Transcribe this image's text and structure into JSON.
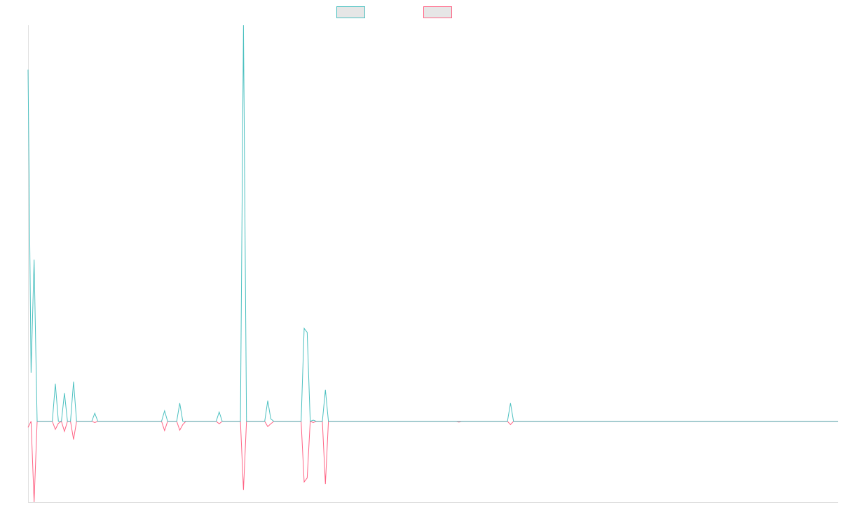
{
  "chart_data": {
    "type": "line",
    "title": "",
    "xlabel": "",
    "ylabel": "",
    "grid": false,
    "legend_placement": "top-center",
    "x": [
      0,
      1,
      2,
      3,
      4,
      5,
      6,
      7,
      8,
      9,
      10,
      11,
      12,
      13,
      14,
      15,
      16,
      17,
      18,
      19,
      20,
      21,
      22,
      23,
      24,
      25,
      26,
      27,
      28,
      29,
      30,
      31,
      32,
      33,
      34,
      35,
      36,
      37,
      38,
      39,
      40,
      41,
      42,
      43,
      44,
      45,
      46,
      47,
      48,
      49,
      50,
      51,
      52,
      53,
      54,
      55,
      56,
      57,
      58,
      59,
      60,
      61,
      62,
      63,
      64,
      65,
      66,
      67,
      68,
      69,
      70,
      71,
      72,
      73,
      74,
      75,
      76,
      77,
      78,
      79,
      80,
      81,
      82,
      83,
      84,
      85,
      86,
      87,
      88,
      89,
      90,
      91,
      92,
      93,
      94,
      95,
      96,
      97,
      98,
      99,
      100,
      101,
      102,
      103,
      104,
      105,
      106,
      107,
      108,
      109,
      110,
      111,
      112,
      113,
      114,
      115,
      116,
      117,
      118,
      119,
      120,
      121,
      122,
      123,
      124,
      125,
      126,
      127,
      128,
      129,
      130,
      131,
      132,
      133,
      134,
      135,
      136,
      137,
      138,
      139,
      140,
      141,
      142,
      143,
      144,
      145,
      146,
      147,
      148,
      149,
      150,
      151,
      152,
      153,
      154,
      155,
      156,
      157,
      158,
      159,
      160,
      161,
      162,
      163,
      164,
      165,
      166,
      167,
      168,
      169,
      170,
      171,
      172,
      173,
      174,
      175,
      176,
      177,
      178,
      179,
      180,
      181,
      182,
      183,
      184,
      185,
      186,
      187,
      188,
      189,
      190,
      191,
      192,
      193,
      194,
      195,
      196,
      197,
      198,
      199,
      200,
      201,
      202,
      203,
      204,
      205,
      206,
      207,
      208,
      209,
      210,
      211,
      212,
      213,
      214,
      215,
      216,
      217,
      218,
      219,
      220,
      221,
      222,
      223,
      224,
      225,
      226,
      227,
      228,
      229,
      230,
      231,
      232,
      233,
      234,
      235,
      236,
      237,
      238,
      239,
      240,
      241,
      242,
      243,
      244,
      245,
      246,
      247,
      248,
      249,
      250,
      251,
      252,
      253,
      254,
      255,
      256,
      257,
      258,
      259,
      260,
      261,
      262,
      263,
      264,
      265,
      266,
      267
    ],
    "ylim": [
      -20,
      98
    ],
    "series": [
      {
        "name": "",
        "color": "#4bc0c0",
        "values": [
          87,
          12,
          40,
          0,
          0,
          0,
          0,
          0,
          0,
          9.3,
          0,
          0,
          7,
          0,
          0,
          9.8,
          0,
          0,
          0,
          0,
          0,
          0,
          2,
          0,
          0,
          0,
          0,
          0,
          0,
          0,
          0,
          0,
          0,
          0,
          0,
          0,
          0,
          0,
          0,
          0,
          0,
          0,
          0,
          0,
          0,
          2.6,
          0,
          0,
          0,
          0,
          4.5,
          0,
          0,
          0,
          0,
          0,
          0,
          0,
          0,
          0,
          0,
          0,
          0,
          2.3,
          0,
          0,
          0,
          0,
          0,
          0,
          0,
          98,
          0,
          0,
          0,
          0,
          0,
          0,
          0,
          5.1,
          0.6,
          0,
          0,
          0,
          0,
          0,
          0,
          0,
          0,
          0,
          0,
          23,
          22,
          0,
          0.3,
          0,
          0,
          0,
          7.8,
          0,
          0,
          0,
          0,
          0,
          0,
          0,
          0,
          0,
          0,
          0,
          0,
          0,
          0,
          0,
          0,
          0,
          0,
          0,
          0,
          0,
          0,
          0,
          0,
          0,
          0,
          0,
          0,
          0,
          0,
          0,
          0,
          0,
          0,
          0,
          0,
          0,
          0,
          0,
          0,
          0,
          0,
          0,
          0,
          0,
          0,
          0,
          0,
          0,
          0,
          0,
          0,
          0,
          0,
          0,
          0,
          0,
          0,
          0,
          0,
          4.5,
          0,
          0,
          0,
          0,
          0,
          0,
          0,
          0,
          0,
          0,
          0,
          0,
          0,
          0,
          0,
          0,
          0,
          0,
          0,
          0,
          0,
          0,
          0,
          0,
          0,
          0,
          0,
          0,
          0,
          0,
          0,
          0,
          0,
          0,
          0,
          0,
          0,
          0,
          0,
          0,
          0,
          0,
          0,
          0,
          0,
          0,
          0,
          0,
          0,
          0,
          0,
          0,
          0,
          0,
          0,
          0,
          0,
          0,
          0,
          0,
          0,
          0,
          0,
          0,
          0,
          0,
          0,
          0,
          0,
          0,
          0,
          0,
          0,
          0,
          0,
          0,
          0,
          0,
          0,
          0,
          0,
          0,
          0,
          0,
          0,
          0,
          0,
          0,
          0,
          0,
          0,
          0,
          0,
          0,
          0,
          0,
          0,
          0,
          0,
          0,
          0,
          0,
          0,
          0,
          0,
          0,
          0,
          0
        ]
      },
      {
        "name": "",
        "color": "#ff6384",
        "values": [
          -1.5,
          0,
          -20,
          0,
          0,
          0,
          0,
          0,
          0,
          -2,
          -0.5,
          0,
          -2.5,
          0,
          0,
          -4.5,
          0,
          0,
          0,
          0,
          0,
          0,
          -0.3,
          0,
          0,
          0,
          0,
          0,
          0,
          0,
          0,
          0,
          0,
          0,
          0,
          0,
          0,
          0,
          0,
          0,
          0,
          0,
          0,
          0,
          0,
          -2.3,
          0,
          0,
          0,
          0,
          -2.2,
          -0.8,
          0,
          0,
          0,
          0,
          0,
          0,
          0,
          0,
          0,
          0,
          0,
          -0.6,
          0,
          0,
          0,
          0,
          0,
          0,
          0,
          -17,
          0,
          0,
          0,
          0,
          0,
          0,
          0,
          -1.3,
          -0.6,
          0,
          0,
          0,
          0,
          0,
          0,
          0,
          0,
          0,
          0,
          -15,
          -14,
          0,
          -0.3,
          0,
          0,
          0,
          -15.5,
          0,
          0,
          0,
          0,
          0,
          0,
          0,
          0,
          0,
          0,
          0,
          0,
          0,
          0,
          0,
          0,
          0,
          0,
          0,
          0,
          0,
          0,
          0,
          0,
          0,
          0,
          0,
          0,
          0,
          0,
          0,
          0,
          0,
          0,
          0,
          0,
          0,
          0,
          0,
          0,
          0,
          0,
          0,
          -0.2,
          0,
          0,
          0,
          0,
          0,
          0,
          0,
          0,
          0,
          0,
          0,
          0,
          0,
          0,
          0,
          0,
          -0.8,
          0,
          0,
          0,
          0,
          0,
          0,
          0,
          0,
          0,
          0,
          0,
          0,
          0,
          0,
          0,
          0,
          0,
          0,
          0,
          0,
          0,
          0,
          0,
          0,
          0,
          0,
          0,
          0,
          0,
          0,
          0,
          0,
          0,
          0,
          0,
          0,
          0,
          0,
          0,
          0,
          0,
          0,
          0,
          0,
          0,
          0,
          0,
          0,
          0,
          0,
          0,
          0,
          0,
          0,
          0,
          0,
          0,
          0,
          0,
          0,
          0,
          0,
          0,
          0,
          0,
          0,
          0,
          0,
          0,
          0,
          0,
          0,
          0,
          0,
          0,
          0,
          0,
          0,
          0,
          0,
          0,
          0,
          0,
          0,
          0,
          0,
          0,
          0,
          0,
          0,
          0,
          0,
          0,
          0,
          0,
          0,
          0,
          0,
          0,
          0,
          0,
          0,
          0,
          0,
          0,
          0,
          0,
          0
        ]
      }
    ]
  }
}
